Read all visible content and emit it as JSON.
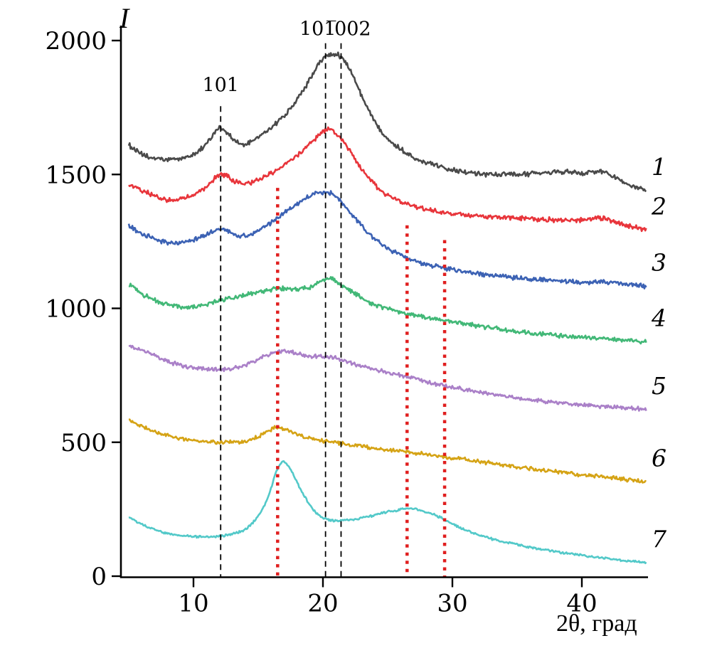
{
  "page": {
    "background": "#ffffff"
  },
  "chart_data": {
    "type": "line",
    "title": "",
    "xlabel": "2θ, град",
    "ylabel": "I",
    "xlim": [
      5,
      45
    ],
    "ylim": [
      0,
      2000
    ],
    "x_ticks": [
      10,
      20,
      30,
      40
    ],
    "y_ticks": [
      0,
      500,
      1000,
      1500,
      2000
    ],
    "grid": false,
    "legend_position": "right-edge-numbers",
    "axis_color": "#000000",
    "reference_lines": {
      "dashed_black": [
        {
          "x": 12.1,
          "top_value": 1755,
          "label": "101",
          "label_x": 12.1,
          "label_value": 1810
        },
        {
          "x": 20.2,
          "top_value": 1990,
          "label": "101̅",
          "label_x": 19.6,
          "label_value": 2020
        },
        {
          "x": 21.4,
          "top_value": 1990,
          "label": "002",
          "label_x": 22.3,
          "label_value": 2020
        }
      ],
      "dotted_red": [
        {
          "x": 16.5,
          "top_value": 1450
        },
        {
          "x": 26.5,
          "top_value": 1310
        },
        {
          "x": 29.4,
          "top_value": 1255
        }
      ],
      "red_color": "#e01f1f"
    },
    "series": [
      {
        "name": "1",
        "color": "#4a4a4a",
        "noise": 11,
        "points": [
          [
            5,
            1610
          ],
          [
            6,
            1575
          ],
          [
            7,
            1560
          ],
          [
            8,
            1555
          ],
          [
            9,
            1560
          ],
          [
            10,
            1575
          ],
          [
            11,
            1615
          ],
          [
            11.7,
            1660
          ],
          [
            12.1,
            1675
          ],
          [
            12.6,
            1655
          ],
          [
            13.3,
            1620
          ],
          [
            14,
            1612
          ],
          [
            15,
            1640
          ],
          [
            16,
            1675
          ],
          [
            17,
            1720
          ],
          [
            18,
            1780
          ],
          [
            19,
            1855
          ],
          [
            19.8,
            1920
          ],
          [
            20.6,
            1950
          ],
          [
            21.2,
            1945
          ],
          [
            21.8,
            1915
          ],
          [
            22.5,
            1850
          ],
          [
            23.2,
            1770
          ],
          [
            24,
            1700
          ],
          [
            25,
            1635
          ],
          [
            26,
            1595
          ],
          [
            27,
            1565
          ],
          [
            28,
            1545
          ],
          [
            29.5,
            1525
          ],
          [
            31,
            1510
          ],
          [
            33,
            1500
          ],
          [
            35,
            1500
          ],
          [
            37,
            1505
          ],
          [
            38.5,
            1510
          ],
          [
            40,
            1505
          ],
          [
            41.5,
            1510
          ],
          [
            43,
            1480
          ],
          [
            44,
            1455
          ],
          [
            45,
            1440
          ]
        ]
      },
      {
        "name": "2",
        "color": "#e8353b",
        "noise": 11,
        "points": [
          [
            5,
            1465
          ],
          [
            6,
            1440
          ],
          [
            7,
            1420
          ],
          [
            8,
            1405
          ],
          [
            9,
            1410
          ],
          [
            10,
            1425
          ],
          [
            11,
            1455
          ],
          [
            12.1,
            1500
          ],
          [
            13,
            1480
          ],
          [
            14,
            1465
          ],
          [
            15,
            1480
          ],
          [
            16,
            1505
          ],
          [
            17,
            1535
          ],
          [
            18,
            1570
          ],
          [
            19,
            1615
          ],
          [
            20,
            1660
          ],
          [
            20.5,
            1670
          ],
          [
            21,
            1655
          ],
          [
            21.8,
            1610
          ],
          [
            22.5,
            1555
          ],
          [
            23.5,
            1490
          ],
          [
            24.5,
            1440
          ],
          [
            25.5,
            1410
          ],
          [
            26.5,
            1390
          ],
          [
            28,
            1370
          ],
          [
            30,
            1355
          ],
          [
            32,
            1345
          ],
          [
            34,
            1340
          ],
          [
            36,
            1335
          ],
          [
            38,
            1330
          ],
          [
            40,
            1330
          ],
          [
            41.5,
            1335
          ],
          [
            43,
            1315
          ],
          [
            45,
            1292
          ]
        ]
      },
      {
        "name": "3",
        "color": "#3c62b4",
        "noise": 10,
        "points": [
          [
            5,
            1310
          ],
          [
            6,
            1280
          ],
          [
            7,
            1260
          ],
          [
            8,
            1245
          ],
          [
            9,
            1245
          ],
          [
            10,
            1255
          ],
          [
            11,
            1275
          ],
          [
            12.1,
            1295
          ],
          [
            13,
            1280
          ],
          [
            14,
            1272
          ],
          [
            15,
            1290
          ],
          [
            16,
            1320
          ],
          [
            17,
            1355
          ],
          [
            18,
            1390
          ],
          [
            19,
            1420
          ],
          [
            20,
            1435
          ],
          [
            20.6,
            1430
          ],
          [
            21.3,
            1405
          ],
          [
            22,
            1365
          ],
          [
            23,
            1310
          ],
          [
            24,
            1260
          ],
          [
            25,
            1225
          ],
          [
            26,
            1200
          ],
          [
            27,
            1180
          ],
          [
            28,
            1165
          ],
          [
            30,
            1145
          ],
          [
            32,
            1130
          ],
          [
            34,
            1118
          ],
          [
            36,
            1110
          ],
          [
            38,
            1103
          ],
          [
            40,
            1098
          ],
          [
            42,
            1098
          ],
          [
            43.5,
            1090
          ],
          [
            45,
            1082
          ]
        ]
      },
      {
        "name": "4",
        "color": "#42b877",
        "noise": 10,
        "points": [
          [
            5,
            1090
          ],
          [
            6,
            1055
          ],
          [
            7,
            1030
          ],
          [
            8,
            1015
          ],
          [
            9,
            1005
          ],
          [
            10,
            1005
          ],
          [
            11,
            1015
          ],
          [
            12,
            1030
          ],
          [
            13,
            1040
          ],
          [
            14,
            1050
          ],
          [
            15,
            1060
          ],
          [
            16,
            1070
          ],
          [
            17,
            1075
          ],
          [
            18,
            1072
          ],
          [
            19,
            1080
          ],
          [
            20,
            1105
          ],
          [
            20.5,
            1112
          ],
          [
            21,
            1100
          ],
          [
            22,
            1070
          ],
          [
            23,
            1040
          ],
          [
            24,
            1015
          ],
          [
            25,
            1000
          ],
          [
            26,
            985
          ],
          [
            27,
            975
          ],
          [
            28,
            965
          ],
          [
            30,
            950
          ],
          [
            32,
            935
          ],
          [
            34,
            920
          ],
          [
            36,
            908
          ],
          [
            38,
            898
          ],
          [
            40,
            892
          ],
          [
            42,
            885
          ],
          [
            44,
            878
          ],
          [
            45,
            875
          ]
        ]
      },
      {
        "name": "5",
        "color": "#aa80c8",
        "noise": 9,
        "points": [
          [
            5,
            862
          ],
          [
            6,
            845
          ],
          [
            7,
            822
          ],
          [
            8,
            802
          ],
          [
            9,
            788
          ],
          [
            10,
            778
          ],
          [
            11,
            774
          ],
          [
            12,
            772
          ],
          [
            13,
            775
          ],
          [
            14,
            790
          ],
          [
            15,
            810
          ],
          [
            16,
            830
          ],
          [
            16.8,
            842
          ],
          [
            17.5,
            838
          ],
          [
            18,
            830
          ],
          [
            19,
            822
          ],
          [
            20,
            820
          ],
          [
            21,
            814
          ],
          [
            22,
            800
          ],
          [
            23,
            785
          ],
          [
            24,
            772
          ],
          [
            25,
            760
          ],
          [
            26,
            750
          ],
          [
            27,
            738
          ],
          [
            28,
            725
          ],
          [
            30,
            705
          ],
          [
            32,
            688
          ],
          [
            34,
            672
          ],
          [
            36,
            658
          ],
          [
            38,
            648
          ],
          [
            40,
            640
          ],
          [
            42,
            632
          ],
          [
            44,
            626
          ],
          [
            45,
            622
          ]
        ]
      },
      {
        "name": "6",
        "color": "#d5a315",
        "noise": 9,
        "points": [
          [
            5,
            585
          ],
          [
            6,
            560
          ],
          [
            7,
            540
          ],
          [
            8,
            525
          ],
          [
            9,
            515
          ],
          [
            10,
            508
          ],
          [
            11,
            502
          ],
          [
            12,
            500
          ],
          [
            13,
            500
          ],
          [
            14,
            505
          ],
          [
            15,
            520
          ],
          [
            16,
            548
          ],
          [
            16.5,
            557
          ],
          [
            17,
            550
          ],
          [
            18,
            530
          ],
          [
            19,
            515
          ],
          [
            20,
            505
          ],
          [
            21,
            498
          ],
          [
            22,
            490
          ],
          [
            23,
            483
          ],
          [
            24,
            478
          ],
          [
            25,
            472
          ],
          [
            26,
            468
          ],
          [
            27,
            462
          ],
          [
            28,
            455
          ],
          [
            30,
            442
          ],
          [
            32,
            428
          ],
          [
            34,
            415
          ],
          [
            36,
            402
          ],
          [
            38,
            390
          ],
          [
            40,
            378
          ],
          [
            42,
            368
          ],
          [
            44,
            358
          ],
          [
            45,
            352
          ]
        ]
      },
      {
        "name": "7",
        "color": "#53c9c9",
        "noise": 5,
        "points": [
          [
            5,
            220
          ],
          [
            6,
            195
          ],
          [
            7,
            175
          ],
          [
            8,
            160
          ],
          [
            9,
            152
          ],
          [
            10,
            148
          ],
          [
            11,
            147
          ],
          [
            12,
            150
          ],
          [
            13,
            158
          ],
          [
            14,
            175
          ],
          [
            15,
            225
          ],
          [
            15.8,
            300
          ],
          [
            16.4,
            390
          ],
          [
            16.9,
            428
          ],
          [
            17.4,
            405
          ],
          [
            18,
            350
          ],
          [
            18.8,
            280
          ],
          [
            19.5,
            235
          ],
          [
            20,
            218
          ],
          [
            20.5,
            210
          ],
          [
            21,
            208
          ],
          [
            22,
            210
          ],
          [
            23,
            218
          ],
          [
            24,
            228
          ],
          [
            25,
            240
          ],
          [
            26,
            248
          ],
          [
            26.6,
            253
          ],
          [
            27.3,
            248
          ],
          [
            28,
            238
          ],
          [
            28.8,
            225
          ],
          [
            29.5,
            208
          ],
          [
            30.2,
            190
          ],
          [
            31,
            172
          ],
          [
            32,
            155
          ],
          [
            33,
            140
          ],
          [
            34,
            128
          ],
          [
            35,
            118
          ],
          [
            36,
            108
          ],
          [
            37,
            100
          ],
          [
            38,
            92
          ],
          [
            39,
            85
          ],
          [
            40,
            78
          ],
          [
            41,
            72
          ],
          [
            42,
            66
          ],
          [
            43,
            60
          ],
          [
            44,
            55
          ],
          [
            45,
            50
          ]
        ]
      }
    ]
  }
}
